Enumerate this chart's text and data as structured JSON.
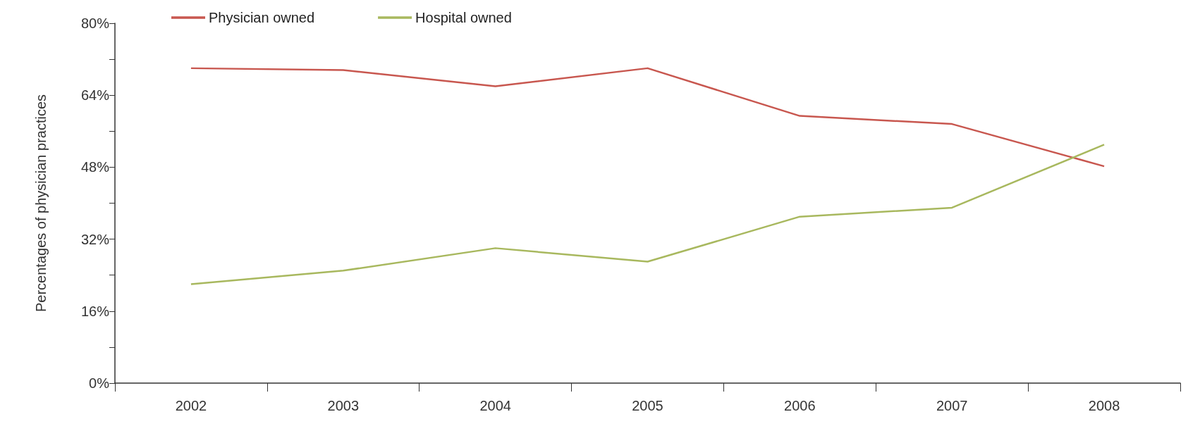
{
  "chart_data": {
    "type": "line",
    "ylabel": "Percentages of physician practices",
    "categories": [
      "2002",
      "2003",
      "2004",
      "2005",
      "2006",
      "2007",
      "2008"
    ],
    "series": [
      {
        "name": "Physician owned",
        "color": "#c8574f",
        "values": [
          70,
          69.6,
          66,
          70,
          59.4,
          57.6,
          48.2
        ]
      },
      {
        "name": "Hospital owned",
        "color": "#a8b85e",
        "values": [
          22,
          25,
          30,
          27,
          37,
          39,
          53
        ]
      }
    ],
    "ylim": [
      0,
      80
    ],
    "yticks": [
      {
        "value": 0,
        "label": "0%"
      },
      {
        "value": 8,
        "label": null
      },
      {
        "value": 16,
        "label": "16%"
      },
      {
        "value": 24,
        "label": null
      },
      {
        "value": 32,
        "label": "32%"
      },
      {
        "value": 40,
        "label": null
      },
      {
        "value": 48,
        "label": "48%"
      },
      {
        "value": 56,
        "label": null
      },
      {
        "value": 64,
        "label": "64%"
      },
      {
        "value": 72,
        "label": null
      },
      {
        "value": 80,
        "label": "80%"
      }
    ],
    "grid": false,
    "legend": "top left",
    "marker": "none",
    "line_style": "solid"
  }
}
